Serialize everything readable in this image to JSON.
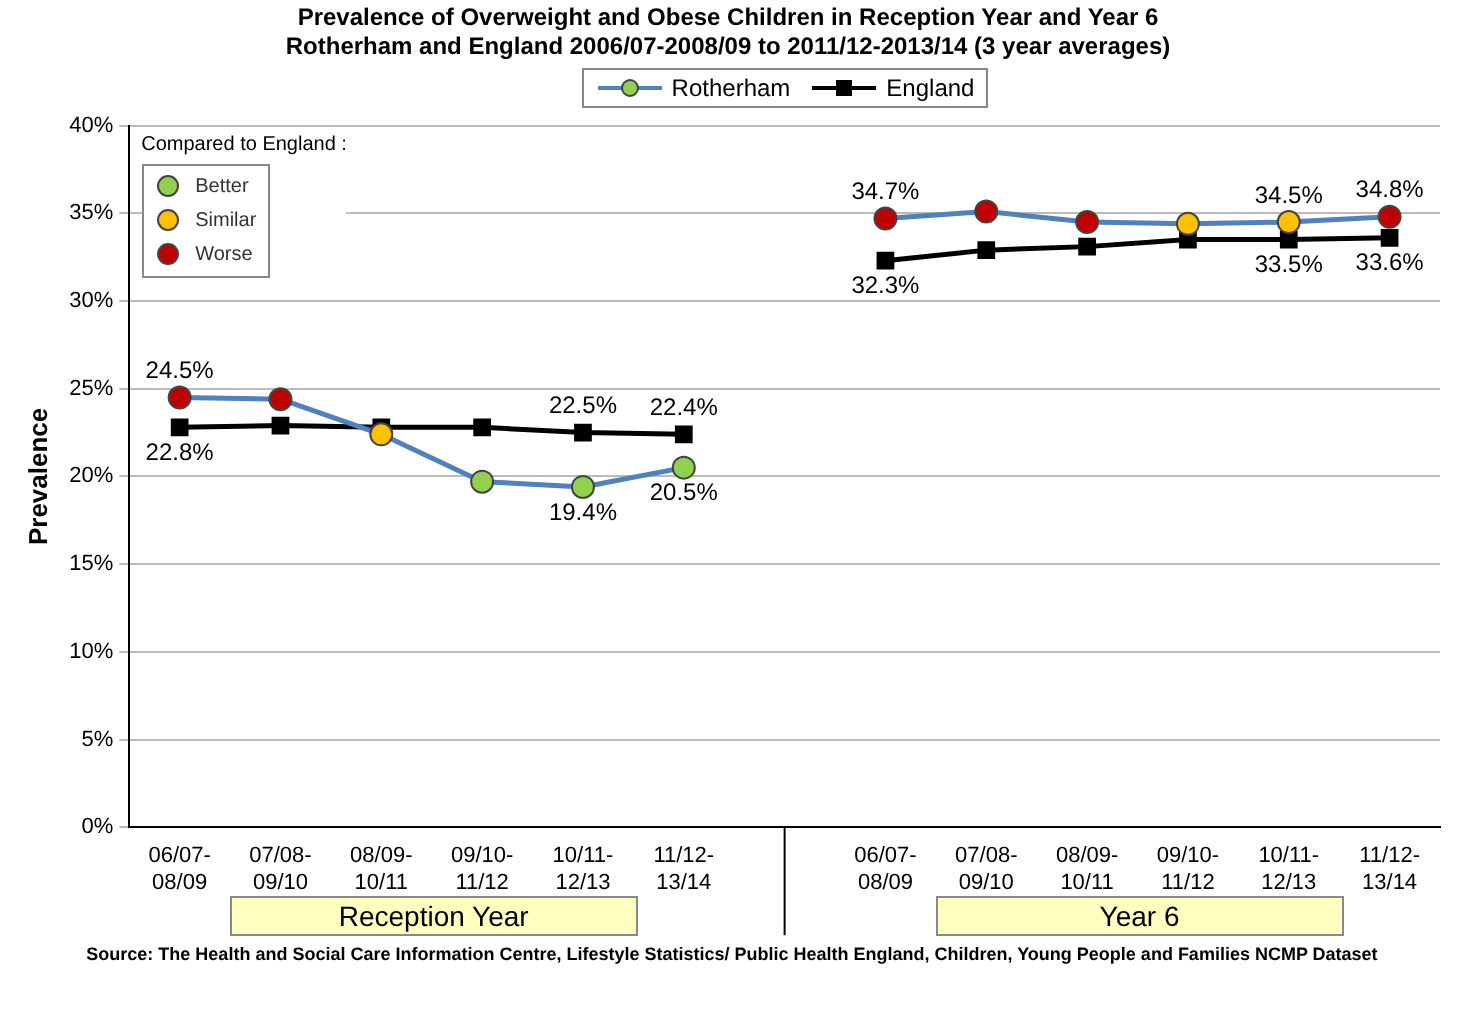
{
  "chart_data": {
    "type": "line",
    "title": "Prevalence of Overweight and Obese Children in Reception Year and Year 6",
    "subtitle": "Rotherham and England 2006/07-2008/09 to 2011/12-2013/14 (3 year averages)",
    "ylabel": "Prevalence",
    "categories": [
      "06/07-08/09",
      "07/08-09/10",
      "08/09-10/11",
      "09/10-11/12",
      "10/11-12/13",
      "11/12-13/14",
      null,
      "06/07-08/09",
      "07/08-09/10",
      "08/09-10/11",
      "09/10-11/12",
      "10/11-12/13",
      "11/12-13/14"
    ],
    "series": [
      {
        "name": "Rotherham",
        "color": "#4f81bd",
        "values": [
          24.5,
          24.4,
          22.4,
          19.7,
          19.4,
          20.5,
          null,
          34.7,
          35.1,
          34.5,
          34.4,
          34.5,
          34.8
        ],
        "value_labels": [
          "24.5%",
          null,
          null,
          null,
          "19.4%",
          "20.5%",
          null,
          "34.7%",
          null,
          null,
          null,
          "34.5%",
          "34.8%"
        ]
      },
      {
        "name": "England",
        "color": "#000000",
        "marker": "square",
        "values": [
          22.8,
          22.9,
          22.8,
          22.8,
          22.5,
          22.4,
          null,
          32.3,
          32.9,
          33.1,
          33.5,
          33.5,
          33.6
        ],
        "value_labels": [
          "22.8%",
          null,
          null,
          null,
          "22.5%",
          "22.4%",
          null,
          "32.3%",
          null,
          null,
          null,
          "33.5%",
          "33.6%"
        ]
      },
      {
        "name": "Better",
        "type": "scatter",
        "marker": "circle",
        "color": "#92d050",
        "values": [
          null,
          null,
          null,
          19.7,
          19.4,
          20.5,
          null,
          null,
          null,
          null,
          null,
          null,
          null
        ]
      },
      {
        "name": "Similar",
        "type": "scatter",
        "marker": "circle",
        "color": "#ffc000",
        "values": [
          null,
          null,
          22.4,
          null,
          null,
          null,
          null,
          null,
          null,
          null,
          34.4,
          34.5,
          null
        ]
      },
      {
        "name": "Worse",
        "type": "scatter",
        "marker": "circle",
        "color": "#c00000",
        "values": [
          24.5,
          24.4,
          null,
          null,
          null,
          null,
          null,
          34.7,
          35.1,
          34.5,
          null,
          null,
          34.8
        ]
      }
    ],
    "legend": "top",
    "legend_title": "Compared to England :",
    "grid": "y",
    "ylim": [
      0,
      40
    ],
    "yticks": [
      {
        "value": 0,
        "label": "0%"
      },
      {
        "value": 5,
        "label": "5%"
      },
      {
        "value": 10,
        "label": "10%"
      },
      {
        "value": 15,
        "label": "15%"
      },
      {
        "value": 20,
        "label": "20%"
      },
      {
        "value": 25,
        "label": "25%"
      },
      {
        "value": 30,
        "label": "30%"
      },
      {
        "value": 35,
        "label": "35%"
      },
      {
        "value": 40,
        "label": "40%"
      }
    ],
    "annotations": [
      "Reception Year",
      "Year 6",
      "Source: The Health and Social Care Information Centre, Lifestyle Statistics/ Public Health England, Children, Young People and Families NCMP Dataset"
    ]
  }
}
